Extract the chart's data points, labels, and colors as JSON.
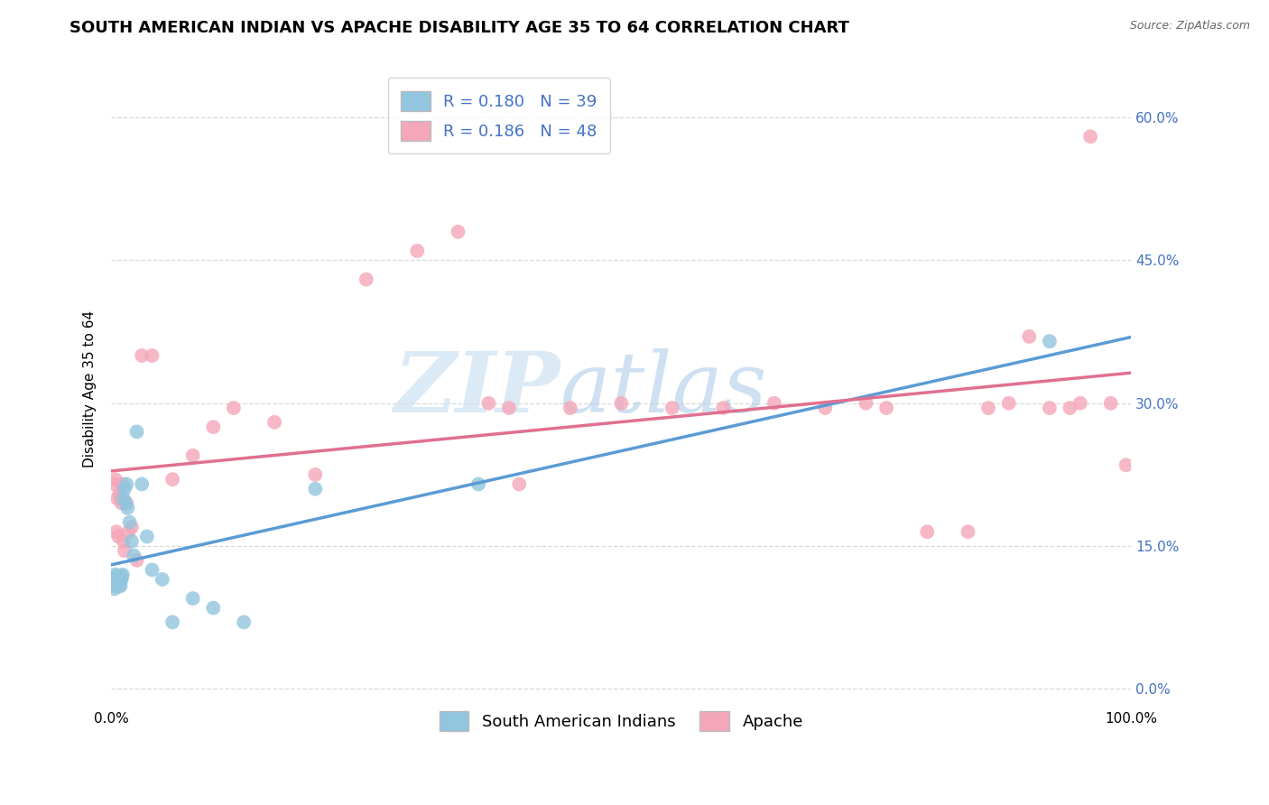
{
  "title": "SOUTH AMERICAN INDIAN VS APACHE DISABILITY AGE 35 TO 64 CORRELATION CHART",
  "source": "Source: ZipAtlas.com",
  "ylabel": "Disability Age 35 to 64",
  "legend_label_1": "South American Indians",
  "legend_label_2": "Apache",
  "r1": 0.18,
  "n1": 39,
  "r2": 0.186,
  "n2": 48,
  "color_blue": "#92c5de",
  "color_pink": "#f4a7b9",
  "line_color_blue": "#5b9bd5",
  "line_color_pink": "#e07090",
  "watermark_zip": "ZIP",
  "watermark_atlas": "atlas",
  "xlim": [
    0.0,
    1.0
  ],
  "ylim": [
    -0.02,
    0.65
  ],
  "y_ticks": [
    0.0,
    0.15,
    0.3,
    0.45,
    0.6
  ],
  "x_ticks_labeled": [
    0.0,
    1.0
  ],
  "x_ticks_minor": [
    0.1,
    0.2,
    0.3,
    0.4,
    0.5,
    0.6,
    0.7,
    0.8,
    0.9
  ],
  "grid_color": "#d9d9d9",
  "background_color": "#ffffff",
  "title_fontsize": 13,
  "axis_label_fontsize": 11,
  "tick_fontsize": 11,
  "legend_fontsize": 13,
  "blue_x": [
    0.002,
    0.003,
    0.003,
    0.004,
    0.004,
    0.004,
    0.005,
    0.005,
    0.006,
    0.006,
    0.007,
    0.007,
    0.008,
    0.008,
    0.009,
    0.009,
    0.01,
    0.01,
    0.011,
    0.012,
    0.013,
    0.014,
    0.015,
    0.016,
    0.018,
    0.02,
    0.022,
    0.025,
    0.03,
    0.035,
    0.04,
    0.05,
    0.06,
    0.08,
    0.1,
    0.13,
    0.2,
    0.36,
    0.92
  ],
  "blue_y": [
    0.115,
    0.11,
    0.105,
    0.12,
    0.115,
    0.108,
    0.118,
    0.112,
    0.115,
    0.11,
    0.108,
    0.115,
    0.115,
    0.11,
    0.115,
    0.108,
    0.118,
    0.115,
    0.12,
    0.2,
    0.21,
    0.195,
    0.215,
    0.19,
    0.175,
    0.155,
    0.14,
    0.27,
    0.215,
    0.16,
    0.125,
    0.115,
    0.07,
    0.095,
    0.085,
    0.07,
    0.21,
    0.215,
    0.365
  ],
  "pink_x": [
    0.003,
    0.004,
    0.005,
    0.006,
    0.007,
    0.008,
    0.009,
    0.01,
    0.011,
    0.012,
    0.013,
    0.015,
    0.017,
    0.02,
    0.025,
    0.03,
    0.04,
    0.06,
    0.08,
    0.1,
    0.12,
    0.16,
    0.2,
    0.25,
    0.3,
    0.34,
    0.37,
    0.39,
    0.4,
    0.45,
    0.5,
    0.55,
    0.6,
    0.65,
    0.7,
    0.74,
    0.76,
    0.8,
    0.84,
    0.86,
    0.88,
    0.9,
    0.92,
    0.94,
    0.95,
    0.96,
    0.98,
    0.995
  ],
  "pink_y": [
    0.215,
    0.22,
    0.165,
    0.2,
    0.16,
    0.205,
    0.2,
    0.195,
    0.215,
    0.155,
    0.145,
    0.195,
    0.165,
    0.17,
    0.135,
    0.35,
    0.35,
    0.22,
    0.245,
    0.275,
    0.295,
    0.28,
    0.225,
    0.43,
    0.46,
    0.48,
    0.3,
    0.295,
    0.215,
    0.295,
    0.3,
    0.295,
    0.295,
    0.3,
    0.295,
    0.3,
    0.295,
    0.165,
    0.165,
    0.295,
    0.3,
    0.37,
    0.295,
    0.295,
    0.3,
    0.58,
    0.3,
    0.235
  ]
}
